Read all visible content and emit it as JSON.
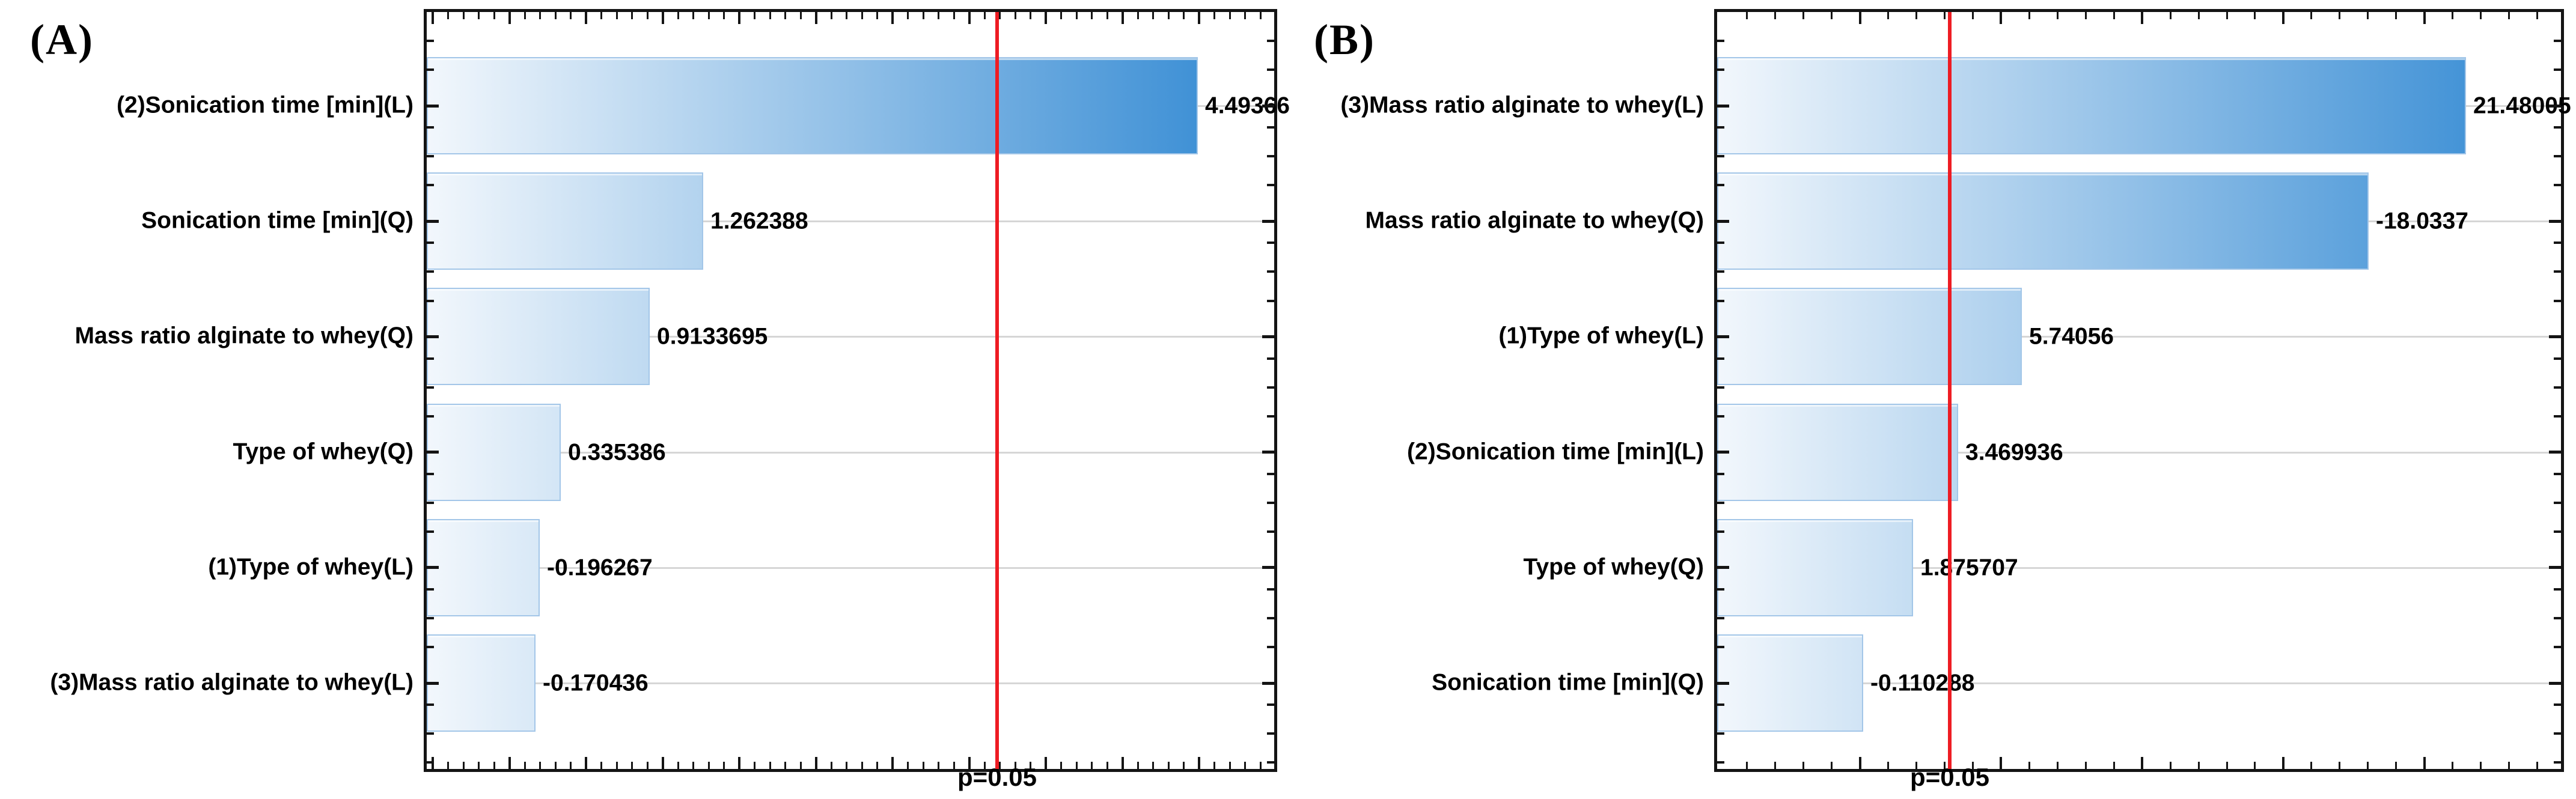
{
  "chart_data": [
    {
      "type": "bar",
      "orientation": "horizontal",
      "panel_label": "(A)",
      "categories": [
        "(2)Sonication time [min](L)",
        "Sonication time [min](Q)",
        "Mass ratio alginate to whey(Q)",
        "Type of whey(Q)",
        "(1)Type of whey(L)",
        "(3)Mass ratio alginate to whey(L)"
      ],
      "values": [
        4.49366,
        1.262388,
        0.9133695,
        0.335386,
        -0.196267,
        -0.170436
      ],
      "bar_value_labels": [
        "4.49366",
        "1.262388",
        "0.9133695",
        "0.335386",
        "-0.196267",
        "-0.170436"
      ],
      "significance_line": {
        "label": "p=0.05",
        "value": 3.182
      },
      "xlim": [
        -0.54,
        4.99
      ],
      "x_major_step": 0.5,
      "x_minor_step": 0.1,
      "bars_start_at_axis_min": true,
      "bar_length_represents": "absolute value of standardized effect estimate",
      "grid": "light horizontal gridline per category",
      "legend": "none"
    },
    {
      "type": "bar",
      "orientation": "horizontal",
      "panel_label": "(B)",
      "categories": [
        "(3)Mass ratio alginate to whey(L)",
        "Mass ratio alginate to whey(Q)",
        "(1)Type of whey(L)",
        "(2)Sonication time [min](L)",
        "Type of whey(Q)",
        "Sonication time [min](Q)"
      ],
      "values": [
        21.48005,
        -18.0337,
        5.74056,
        3.469936,
        1.875707,
        -0.110288
      ],
      "bar_value_labels": [
        "21.48005",
        "-18.0337",
        "5.74056",
        "3.469936",
        "1.875707",
        "-0.110288"
      ],
      "significance_line": {
        "label": "p=0.05",
        "value": 3.182
      },
      "xlim": [
        -5.06,
        24.84
      ],
      "x_major_step": 5,
      "x_minor_step": 1,
      "bars_start_at_axis_min": true,
      "bar_length_represents": "absolute value of standardized effect estimate",
      "grid": "light horizontal gridline per category",
      "legend": "none"
    }
  ],
  "colors": {
    "background": "#ffffff",
    "axis": "#141414",
    "text": "#000000",
    "bar_gradient_start": "#f2f7fc",
    "bar_gradient_end": "#2e87d2",
    "bar_border": "#a3c6e8",
    "gridline": "#d6d6d6",
    "significance_line": "#ee1c23"
  }
}
